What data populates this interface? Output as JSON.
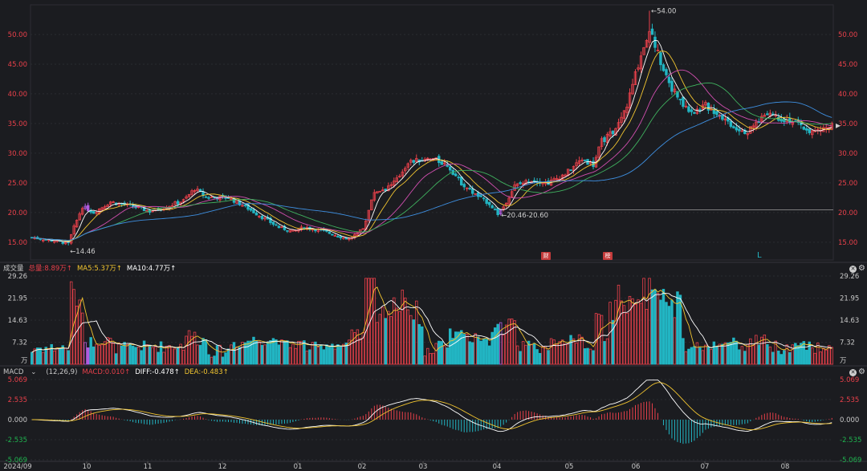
{
  "colors": {
    "up": "#e8404a",
    "down": "#22b5c3",
    "ma5": "#ffffff",
    "ma10": "#f2c530",
    "ma20": "#d24fb0",
    "ma30": "#3fb05e",
    "ma60": "#3e8fe0",
    "spike": "#b05de0"
  },
  "price_panel": {
    "y_ticks": [
      "50.00",
      "45.00",
      "40.00",
      "35.00",
      "30.00",
      "25.00",
      "20.00",
      "15.00"
    ],
    "annotations": {
      "high": "←54.00",
      "low": "←14.46",
      "range": "←20.46-20.60"
    },
    "events": [
      "财",
      "榜"
    ],
    "marker": "L"
  },
  "volume_panel": {
    "title": "成交量",
    "total": "总量:8.89万↑",
    "ma5": "MA5:5.37万↑",
    "ma10": "MA10:4.77万↑",
    "y_ticks": [
      "29.26",
      "21.95",
      "14.63",
      "7.32"
    ],
    "unit": "万"
  },
  "macd_panel": {
    "title": "MACD",
    "params": "(12,26,9)",
    "macd": "MACD:0.010↑",
    "diff": "DIFF:-0.478↑",
    "dea": "DEA:-0.483↑",
    "y_ticks": [
      "5.069",
      "2.535",
      "0.000",
      "-2.535",
      "-5.069"
    ]
  },
  "x_axis": {
    "labels": [
      "2024/09",
      "10",
      "11",
      "12",
      "01",
      "02",
      "03",
      "04",
      "05",
      "06",
      "07",
      "08"
    ]
  },
  "chart_data": {
    "type": "candlestick",
    "title": "",
    "x": [
      "2024/09",
      "10",
      "11",
      "12",
      "01",
      "02",
      "03",
      "04",
      "05",
      "06",
      "07",
      "08"
    ],
    "price_keypoints": [
      [
        0,
        15.8
      ],
      [
        8,
        15.2
      ],
      [
        13,
        14.8
      ],
      [
        15,
        17.5
      ],
      [
        18,
        21.0
      ],
      [
        22,
        20.0
      ],
      [
        28,
        21.8
      ],
      [
        36,
        21.0
      ],
      [
        42,
        20.2
      ],
      [
        48,
        21.0
      ],
      [
        54,
        22.0
      ],
      [
        58,
        24.0
      ],
      [
        62,
        22.6
      ],
      [
        70,
        22.5
      ],
      [
        76,
        21.0
      ],
      [
        82,
        19.2
      ],
      [
        88,
        17.5
      ],
      [
        93,
        16.8
      ],
      [
        97,
        17.5
      ],
      [
        103,
        17.0
      ],
      [
        108,
        16.2
      ],
      [
        113,
        15.5
      ],
      [
        118,
        17.2
      ],
      [
        122,
        23.5
      ],
      [
        126,
        24.0
      ],
      [
        130,
        25.5
      ],
      [
        134,
        28.5
      ],
      [
        138,
        28.8
      ],
      [
        143,
        29.0
      ],
      [
        148,
        28.0
      ],
      [
        153,
        25.0
      ],
      [
        158,
        23.0
      ],
      [
        163,
        21.5
      ],
      [
        166,
        19.8
      ],
      [
        168,
        21.0
      ],
      [
        172,
        24.5
      ],
      [
        178,
        25.5
      ],
      [
        184,
        25.0
      ],
      [
        190,
        26.5
      ],
      [
        196,
        29.0
      ],
      [
        200,
        28.0
      ],
      [
        203,
        32.0
      ],
      [
        208,
        34.0
      ],
      [
        212,
        38.0
      ],
      [
        216,
        45.0
      ],
      [
        220,
        51.0
      ],
      [
        224,
        45.5
      ],
      [
        228,
        41.0
      ],
      [
        232,
        38.0
      ],
      [
        236,
        37.0
      ],
      [
        240,
        38.0
      ],
      [
        245,
        36.5
      ],
      [
        250,
        34.5
      ],
      [
        255,
        33.5
      ],
      [
        258,
        35.0
      ],
      [
        262,
        37.0
      ],
      [
        266,
        36.0
      ],
      [
        270,
        35.5
      ],
      [
        274,
        34.5
      ],
      [
        278,
        33.5
      ],
      [
        282,
        34.0
      ],
      [
        285,
        34.6
      ]
    ],
    "candle_count": 286,
    "price_ylim": [
      12.0,
      55.0
    ],
    "high": 54.0,
    "low": 14.46,
    "last": 34.6,
    "volume_ylim": [
      0,
      29.26
    ],
    "macd_ylim": [
      -5.069,
      5.069
    ],
    "grid": true,
    "series": [
      {
        "name": "MA5",
        "period": 5
      },
      {
        "name": "MA10",
        "period": 10
      },
      {
        "name": "MA20",
        "period": 20
      },
      {
        "name": "MA30",
        "period": 30
      },
      {
        "name": "MA60",
        "period": 60
      },
      {
        "name": "DIFF"
      },
      {
        "name": "DEA"
      },
      {
        "name": "MACD"
      }
    ]
  }
}
